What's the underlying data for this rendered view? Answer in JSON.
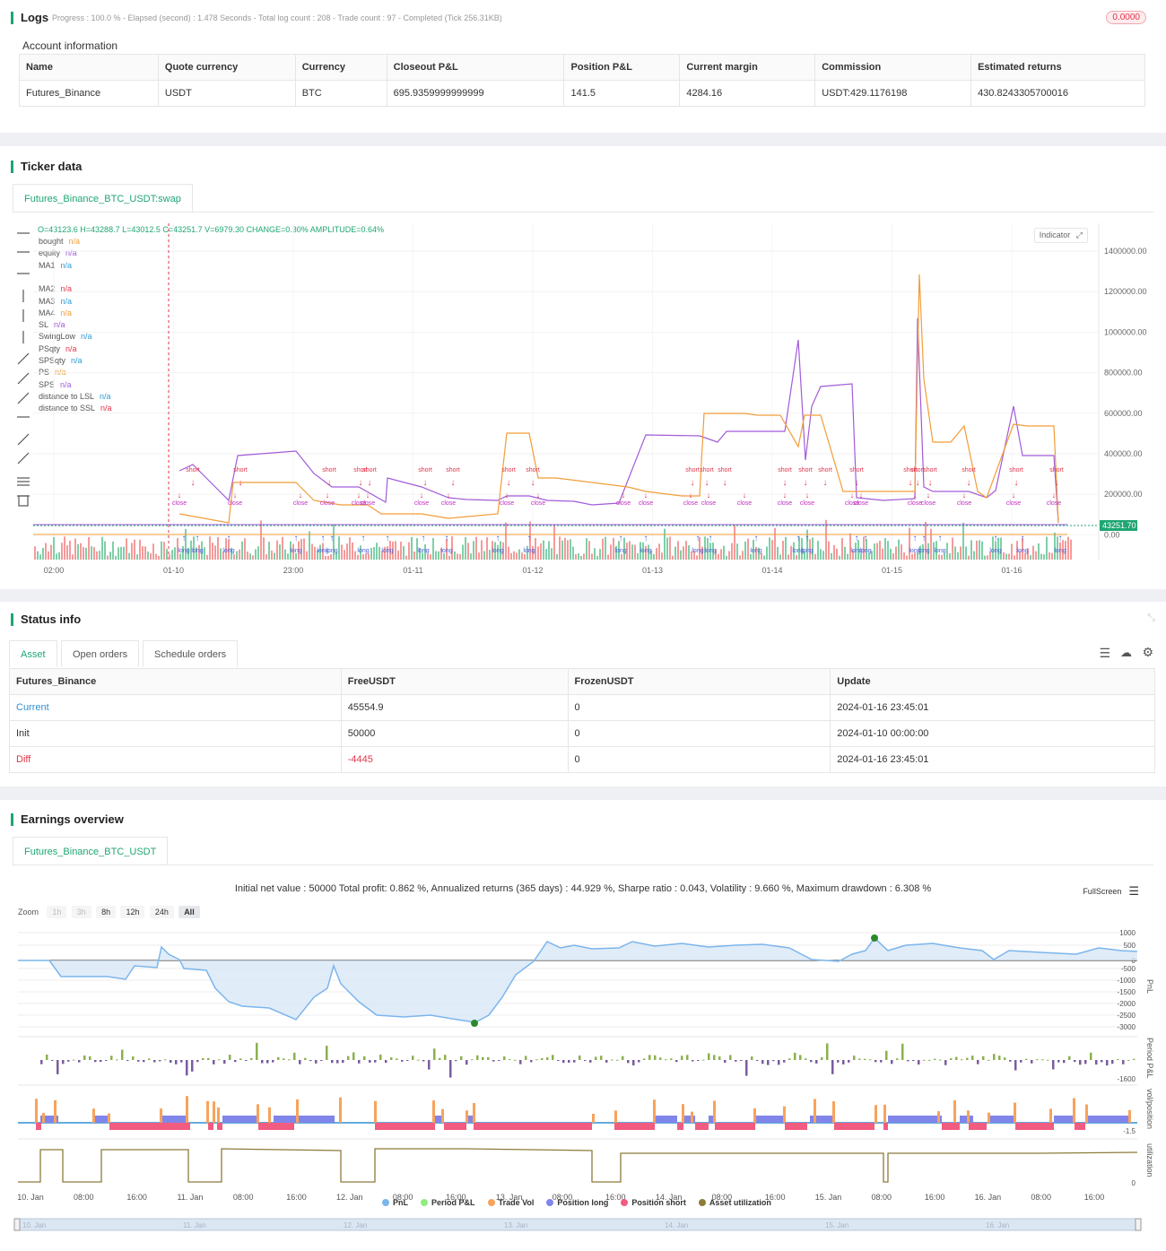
{
  "logs": {
    "title": "Logs",
    "status": "Progress : 100.0 % - Elapsed (second) : 1.478  Seconds - Total log count : 208 - Trade count : 97 - Completed (Tick 256.31KB)",
    "badge": "0.0000"
  },
  "account": {
    "title": "Account information",
    "headers": [
      "Name",
      "Quote currency",
      "Currency",
      "Closeout P&L",
      "Position P&L",
      "Current margin",
      "Commission",
      "Estimated returns"
    ],
    "row": [
      "Futures_Binance",
      "USDT",
      "BTC",
      "695.9359999999999",
      "141.5",
      "4284.16",
      "USDT:429.1176198",
      "430.8243305700016"
    ]
  },
  "ticker": {
    "title": "Ticker data",
    "tab": "Futures_Binance_BTC_USDT:swap",
    "ohlc": "O=43123.6 H=43288.7 L=43012.5 C=43251.7 V=6979.30 CHANGE=0.30% AMPLITUDE=0.64%",
    "indicator_btn": "Indicator",
    "legend": [
      {
        "name": "bought",
        "value": "n/a",
        "color": "#f29d38"
      },
      {
        "name": "equity",
        "value": "n/a",
        "color": "#a25bd9"
      },
      {
        "name": "MA1",
        "value": "n/a",
        "color": "#2f9bd6"
      },
      {
        "name": "",
        "value": "",
        "color": "#fff"
      },
      {
        "name": "MA2",
        "value": "n/a",
        "color": "#e0344a"
      },
      {
        "name": "MA3",
        "value": "n/a",
        "color": "#2f9bd6"
      },
      {
        "name": "MA4",
        "value": "n/a",
        "color": "#f29d38"
      },
      {
        "name": "SL",
        "value": "n/a",
        "color": "#a25bd9"
      },
      {
        "name": "SwingLow",
        "value": "n/a",
        "color": "#2f9bd6"
      },
      {
        "name": "PSqty",
        "value": "n/a",
        "color": "#e0344a"
      },
      {
        "name": "SPSqty",
        "value": "n/a",
        "color": "#2f9bd6"
      },
      {
        "name": "PS",
        "value": "n/a",
        "color": "#f29d38"
      },
      {
        "name": "SPS",
        "value": "n/a",
        "color": "#a25bd9"
      },
      {
        "name": "distance to LSL",
        "value": "n/a",
        "color": "#2f9bd6"
      },
      {
        "name": "distance to SSL",
        "value": "n/a",
        "color": "#e0344a"
      }
    ],
    "y_ticks": [
      "1400000.00",
      "1200000.00",
      "1000000.00",
      "800000.00",
      "600000.00",
      "400000.00",
      "200000.00",
      "0.00"
    ],
    "x_ticks": [
      "02:00",
      "01-10",
      "23:00",
      "01-11",
      "01-12",
      "01-13",
      "01-14",
      "01-15",
      "01-16"
    ],
    "price_tag": "43251.70",
    "marker_labels": {
      "short": "short",
      "long": "long",
      "close": "close"
    }
  },
  "status": {
    "title": "Status info",
    "tabs": [
      "Asset",
      "Open orders",
      "Schedule orders"
    ],
    "headers": [
      "Futures_Binance",
      "FreeUSDT",
      "FrozenUSDT",
      "Update"
    ],
    "rows": [
      [
        "Current",
        "45554.9",
        "0",
        "2024-01-16 23:45:01"
      ],
      [
        "Init",
        "50000",
        "0",
        "2024-01-10 00:00:00"
      ],
      [
        "Diff",
        "-4445",
        "0",
        "2024-01-16 23:45:01"
      ]
    ]
  },
  "earnings": {
    "title": "Earnings overview",
    "tab": "Futures_Binance_BTC_USDT",
    "summary": "Initial net value : 50000 Total profit: 0.862 %, Annualized returns (365 days) : 44.929 %, Sharpe ratio : 0.043, Volatility : 9.660 %, Maximum drawdown : 6.308 %",
    "fullscreen": "FullScreen",
    "zoom_label": "Zoom",
    "zoom": [
      "1h",
      "3h",
      "8h",
      "12h",
      "24h",
      "All"
    ],
    "pnl_ticks": [
      "1000",
      "500",
      "0",
      "-500",
      "-1000",
      "-1500",
      "-2000",
      "-2500",
      "-3000"
    ],
    "pnl_label": "PnL",
    "period_label": "Period P&L",
    "period_tick": "-1600",
    "vol_label": "vol/position",
    "vol_tick": "-1.5",
    "util_label": "utilization",
    "util_tick": "0",
    "x_ticks": [
      "10. Jan",
      "08:00",
      "16:00",
      "11. Jan",
      "08:00",
      "16:00",
      "12. Jan",
      "08:00",
      "16:00",
      "13. Jan",
      "08:00",
      "16:00",
      "14. Jan",
      "08:00",
      "16:00",
      "15. Jan",
      "08:00",
      "16:00",
      "16. Jan",
      "08:00",
      "16:00"
    ],
    "nav_ticks": [
      "10. Jan",
      "11. Jan",
      "12. Jan",
      "13. Jan",
      "14. Jan",
      "15. Jan",
      "16. Jan"
    ],
    "legend": [
      {
        "name": "PnL",
        "color": "#7cb5ec"
      },
      {
        "name": "Period P&L",
        "color": "#90ed7d"
      },
      {
        "name": "Trade Vol",
        "color": "#f7a35c"
      },
      {
        "name": "Position long",
        "color": "#8085e9"
      },
      {
        "name": "Position short",
        "color": "#f15c80"
      },
      {
        "name": "Asset utilization",
        "color": "#8d7b3a"
      }
    ],
    "colors": {
      "pnl": "#7cb5ec",
      "period_pos": "#8bb04f",
      "period_neg": "#7a5c9e",
      "vol": "#f7a35c",
      "long": "#8085e9",
      "short": "#f15c80",
      "util": "#8d7b3a"
    }
  }
}
